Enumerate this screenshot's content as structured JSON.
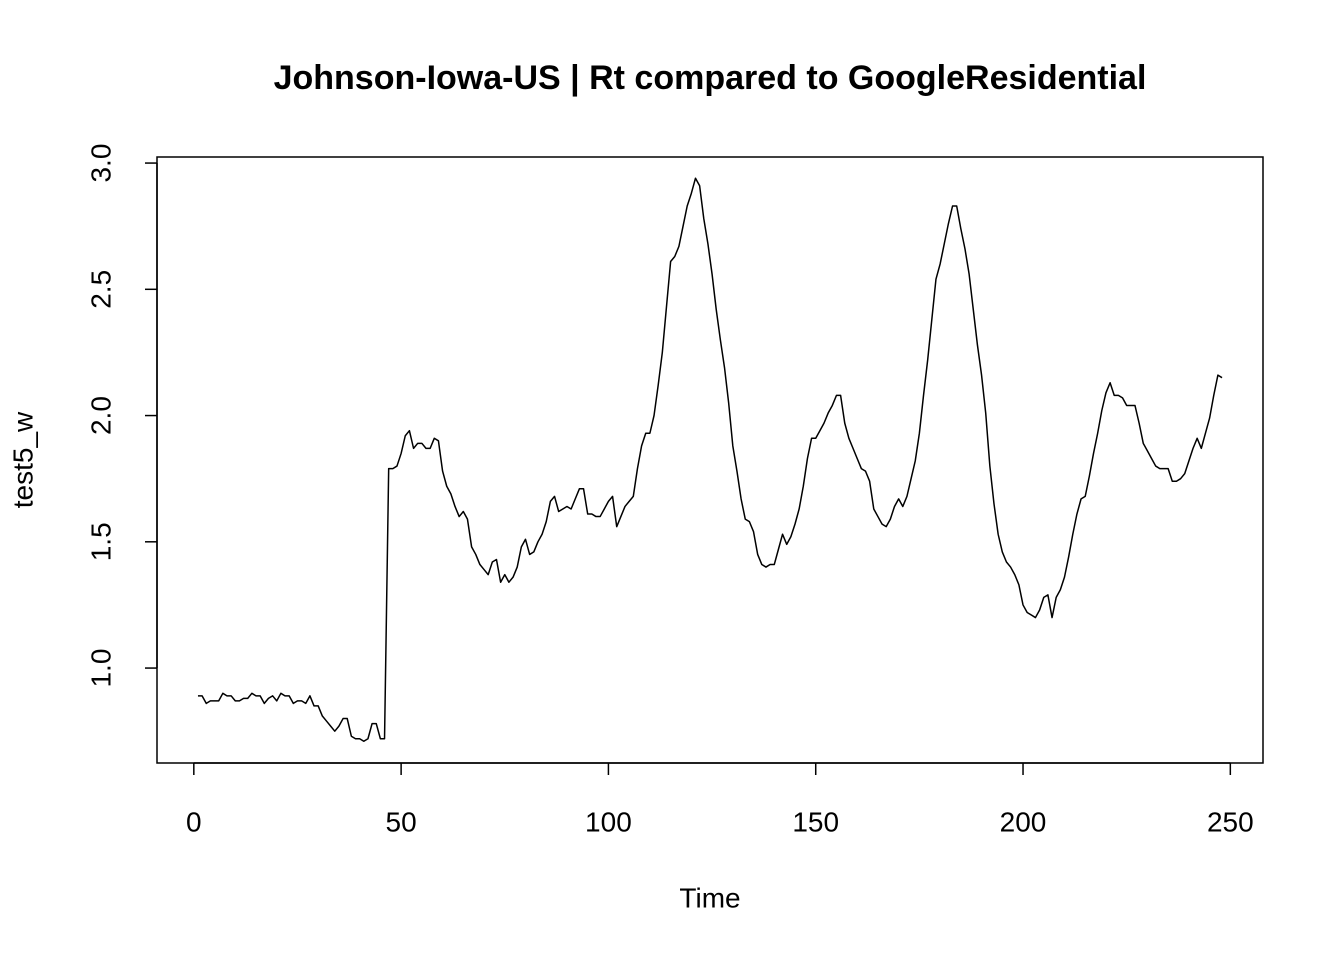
{
  "chart_data": {
    "type": "line",
    "title": "Johnson-Iowa-US | Rt compared to GoogleResidential",
    "xlabel": "Time",
    "ylabel": "test5_w",
    "x": [
      1,
      2,
      3,
      4,
      5,
      6,
      7,
      8,
      9,
      10,
      11,
      12,
      13,
      14,
      15,
      16,
      17,
      18,
      19,
      20,
      21,
      22,
      23,
      24,
      25,
      26,
      27,
      28,
      29,
      30,
      31,
      32,
      33,
      34,
      35,
      36,
      37,
      38,
      39,
      40,
      41,
      42,
      43,
      44,
      45,
      46,
      47,
      48,
      49,
      50,
      51,
      52,
      53,
      54,
      55,
      56,
      57,
      58,
      59,
      60,
      61,
      62,
      63,
      64,
      65,
      66,
      67,
      68,
      69,
      70,
      71,
      72,
      73,
      74,
      75,
      76,
      77,
      78,
      79,
      80,
      81,
      82,
      83,
      84,
      85,
      86,
      87,
      88,
      89,
      90,
      91,
      92,
      93,
      94,
      95,
      96,
      97,
      98,
      99,
      100,
      101,
      102,
      103,
      104,
      105,
      106,
      107,
      108,
      109,
      110,
      111,
      112,
      113,
      114,
      115,
      116,
      117,
      118,
      119,
      120,
      121,
      122,
      123,
      124,
      125,
      126,
      127,
      128,
      129,
      130,
      131,
      132,
      133,
      134,
      135,
      136,
      137,
      138,
      139,
      140,
      141,
      142,
      143,
      144,
      145,
      146,
      147,
      148,
      149,
      150,
      151,
      152,
      153,
      154,
      155,
      156,
      157,
      158,
      159,
      160,
      161,
      162,
      163,
      164,
      165,
      166,
      167,
      168,
      169,
      170,
      171,
      172,
      173,
      174,
      175,
      176,
      177,
      178,
      179,
      180,
      181,
      182,
      183,
      184,
      185,
      186,
      187,
      188,
      189,
      190,
      191,
      192,
      193,
      194,
      195,
      196,
      197,
      198,
      199,
      200,
      201,
      202,
      203,
      204,
      205,
      206,
      207,
      208,
      209,
      210,
      211,
      212,
      213,
      214,
      215,
      216,
      217,
      218,
      219,
      220,
      221,
      222,
      223,
      224,
      225,
      226,
      227,
      228,
      229,
      230,
      231,
      232,
      233,
      234,
      235,
      236,
      237,
      238,
      239,
      240,
      241,
      242,
      243,
      244,
      245,
      246,
      247,
      248
    ],
    "series": [
      {
        "color": "#000000",
        "values": [
          0.89,
          0.89,
          0.86,
          0.87,
          0.87,
          0.87,
          0.9,
          0.89,
          0.89,
          0.87,
          0.87,
          0.88,
          0.88,
          0.9,
          0.89,
          0.89,
          0.86,
          0.88,
          0.89,
          0.87,
          0.9,
          0.89,
          0.89,
          0.86,
          0.87,
          0.87,
          0.86,
          0.89,
          0.85,
          0.85,
          0.81,
          0.79,
          0.77,
          0.75,
          0.77,
          0.8,
          0.8,
          0.73,
          0.72,
          0.72,
          0.71,
          0.72,
          0.78,
          0.78,
          0.72,
          0.72,
          1.79,
          1.79,
          1.8,
          1.85,
          1.92,
          1.94,
          1.87,
          1.89,
          1.89,
          1.87,
          1.87,
          1.91,
          1.9,
          1.78,
          1.72,
          1.69,
          1.64,
          1.6,
          1.62,
          1.59,
          1.48,
          1.45,
          1.41,
          1.39,
          1.37,
          1.42,
          1.43,
          1.34,
          1.37,
          1.34,
          1.36,
          1.4,
          1.48,
          1.51,
          1.45,
          1.46,
          1.5,
          1.53,
          1.58,
          1.66,
          1.68,
          1.62,
          1.63,
          1.64,
          1.63,
          1.67,
          1.71,
          1.71,
          1.61,
          1.61,
          1.6,
          1.6,
          1.63,
          1.66,
          1.68,
          1.56,
          1.6,
          1.64,
          1.66,
          1.68,
          1.79,
          1.88,
          1.93,
          1.93,
          2.0,
          2.12,
          2.25,
          2.43,
          2.61,
          2.63,
          2.67,
          2.75,
          2.83,
          2.88,
          2.94,
          2.91,
          2.78,
          2.68,
          2.56,
          2.42,
          2.3,
          2.19,
          2.05,
          1.88,
          1.78,
          1.67,
          1.59,
          1.58,
          1.54,
          1.45,
          1.41,
          1.4,
          1.41,
          1.41,
          1.47,
          1.53,
          1.49,
          1.52,
          1.57,
          1.63,
          1.72,
          1.83,
          1.91,
          1.91,
          1.94,
          1.97,
          2.01,
          2.04,
          2.08,
          2.08,
          1.97,
          1.91,
          1.87,
          1.83,
          1.79,
          1.78,
          1.74,
          1.63,
          1.6,
          1.57,
          1.56,
          1.59,
          1.64,
          1.67,
          1.64,
          1.68,
          1.75,
          1.82,
          1.93,
          2.08,
          2.22,
          2.38,
          2.54,
          2.6,
          2.68,
          2.76,
          2.83,
          2.83,
          2.74,
          2.66,
          2.56,
          2.42,
          2.28,
          2.16,
          2.01,
          1.8,
          1.65,
          1.53,
          1.46,
          1.42,
          1.4,
          1.37,
          1.33,
          1.25,
          1.22,
          1.21,
          1.2,
          1.23,
          1.28,
          1.29,
          1.2,
          1.28,
          1.31,
          1.36,
          1.44,
          1.53,
          1.61,
          1.67,
          1.68,
          1.76,
          1.85,
          1.93,
          2.02,
          2.09,
          2.13,
          2.08,
          2.08,
          2.07,
          2.04,
          2.04,
          2.04,
          1.97,
          1.89,
          1.86,
          1.83,
          1.8,
          1.79,
          1.79,
          1.79,
          1.74,
          1.74,
          1.75,
          1.77,
          1.82,
          1.87,
          1.91,
          1.87,
          1.93,
          1.99,
          2.08,
          2.16,
          2.15
        ]
      }
    ],
    "xlim": [
      -8.88,
      257.88
    ],
    "xticks": [
      0,
      50,
      100,
      150,
      200,
      250
    ],
    "ylim": [
      0.624,
      3.024
    ],
    "yticks": [
      {
        "value": 1,
        "label": "1.0"
      },
      {
        "value": 1.5,
        "label": "1.5"
      },
      {
        "value": 2,
        "label": "2.0"
      },
      {
        "value": 2.5,
        "label": "2.5"
      },
      {
        "value": 3,
        "label": "3.0"
      }
    ],
    "grid": false
  }
}
